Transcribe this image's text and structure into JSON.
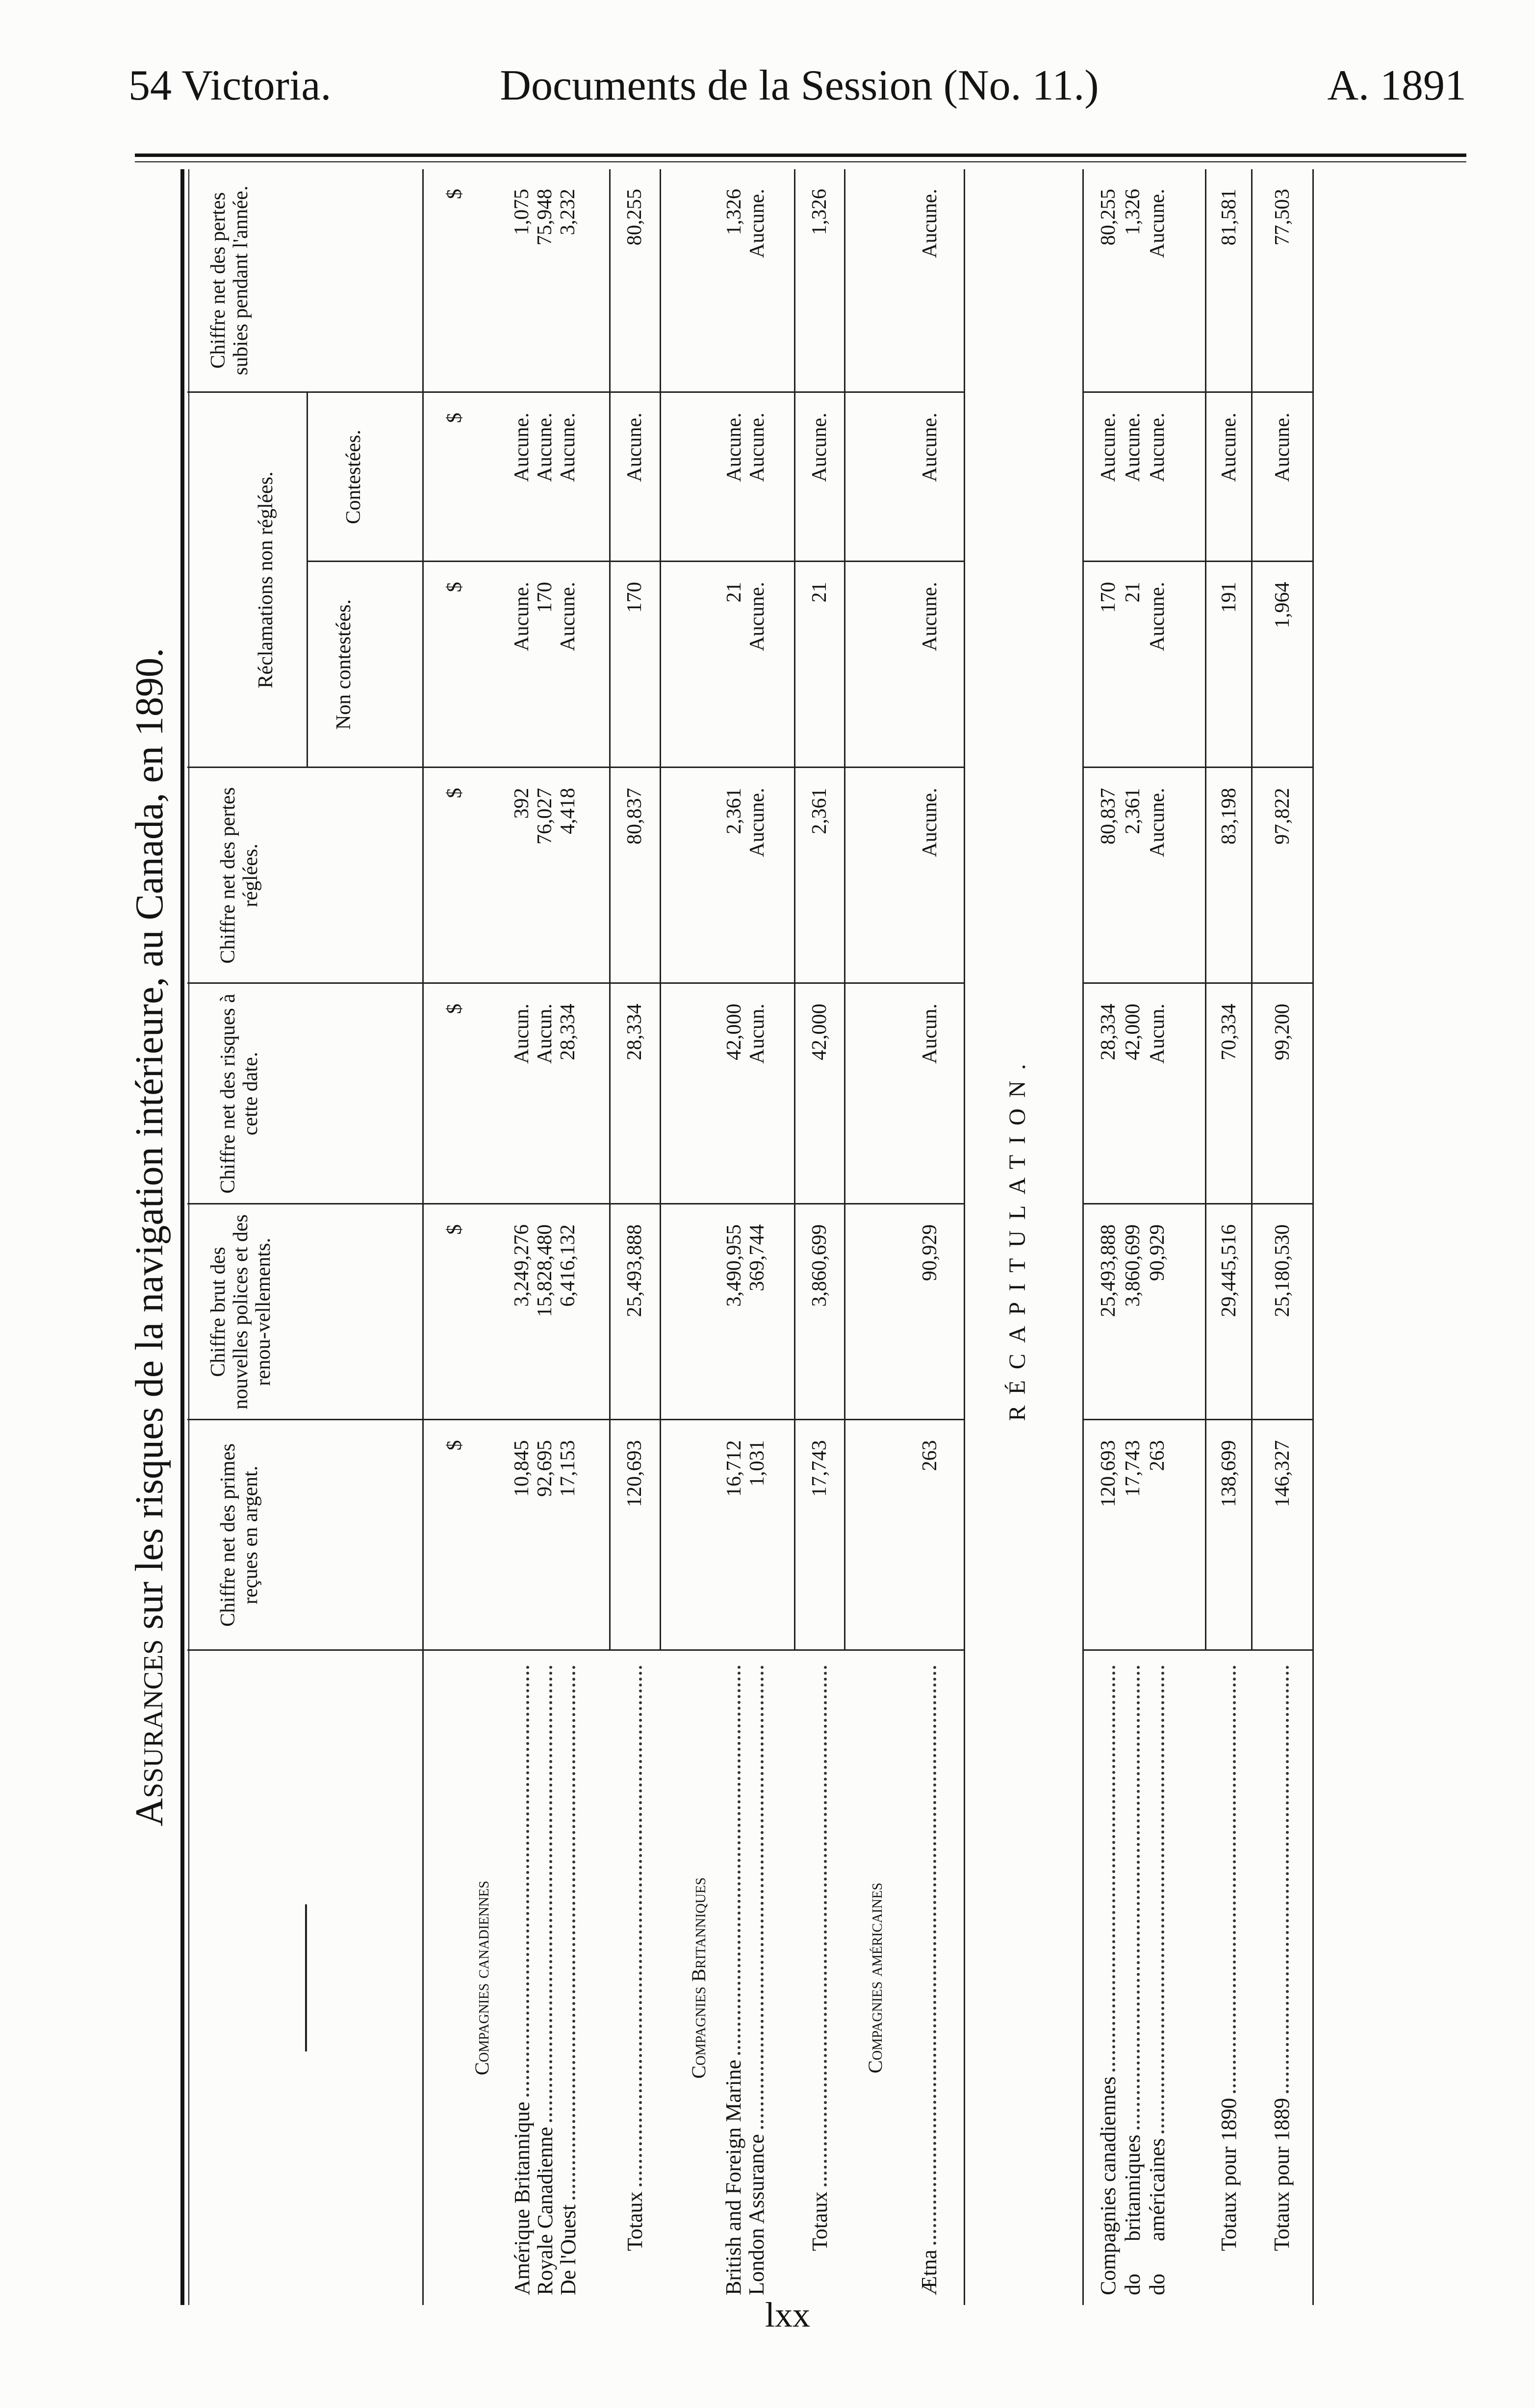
{
  "page_header": {
    "left": "54 Victoria.",
    "center": "Documents de la Session (No. 11.)",
    "right": "A. 1891"
  },
  "title": {
    "lead": "Assurances",
    "rest": " sur les risques de la navigation intérieure, au Canada, en 1890."
  },
  "columns": {
    "c1": "Chiffre net des primes reçues en argent.",
    "c2": "Chiffre brut des nouvelles polices et des renou-vellements.",
    "c3": "Chiffre net des risques à cette date.",
    "c4": "Chiffre net des pertes réglées.",
    "c5": "Réclamations non réglées.",
    "c5a": "Non contestées.",
    "c5b": "Contestées.",
    "c6": "Chiffre net des pertes subies pendant l'année."
  },
  "currency_symbol": "$",
  "sections": [
    {
      "heading": "Compagnies canadiennes",
      "show_currency": true,
      "rows": [
        {
          "label": "Amérique Britannique",
          "values": [
            "10,845",
            "3,249,276",
            "Aucun.",
            "392",
            "Aucune.",
            "Aucune.",
            "1,075"
          ]
        },
        {
          "label": "Royale Canadienne",
          "values": [
            "92,695",
            "15,828,480",
            "Aucun.",
            "76,027",
            "170",
            "Aucune.",
            "75,948"
          ]
        },
        {
          "label": "De l'Ouest",
          "values": [
            "17,153",
            "6,416,132",
            "28,334",
            "4,418",
            "Aucune.",
            "Aucune.",
            "3,232"
          ]
        }
      ],
      "total": {
        "label": "Totaux",
        "values": [
          "120,693",
          "25,493,888",
          "28,334",
          "80,837",
          "170",
          "Aucune.",
          "80,255"
        ]
      }
    },
    {
      "heading": "Compagnies Britanniques",
      "show_currency": false,
      "rows": [
        {
          "label": "British and Foreign Marine",
          "values": [
            "16,712",
            "3,490,955",
            "42,000",
            "2,361",
            "21",
            "Aucune.",
            "1,326"
          ]
        },
        {
          "label": "London Assurance",
          "values": [
            "1,031",
            "369,744",
            "Aucun.",
            "Aucune.",
            "Aucune.",
            "Aucune.",
            "Aucune."
          ]
        }
      ],
      "total": {
        "label": "Totaux",
        "values": [
          "17,743",
          "3,860,699",
          "42,000",
          "2,361",
          "21",
          "Aucune.",
          "1,326"
        ]
      }
    },
    {
      "heading": "Compagnies américaines",
      "show_currency": false,
      "rows": [
        {
          "label": "Ætna",
          "values": [
            "263",
            "90,929",
            "Aucun.",
            "Aucune.",
            "Aucune.",
            "Aucune.",
            "Aucune."
          ]
        }
      ]
    }
  ],
  "recap": {
    "heading": "RÉCAPITULATION.",
    "rows": [
      {
        "prefix": "",
        "label": "Compagnies canadiennes",
        "values": [
          "120,693",
          "25,493,888",
          "28,334",
          "80,837",
          "170",
          "Aucune.",
          "80,255"
        ]
      },
      {
        "prefix": "do",
        "label": "britanniques",
        "values": [
          "17,743",
          "3,860,699",
          "42,000",
          "2,361",
          "21",
          "Aucune.",
          "1,326"
        ]
      },
      {
        "prefix": "do",
        "label": "américaines",
        "values": [
          "263",
          "90,929",
          "Aucun.",
          "Aucune.",
          "Aucune.",
          "Aucune.",
          "Aucune."
        ]
      }
    ],
    "totals": [
      {
        "label": "Totaux pour 1890",
        "values": [
          "138,699",
          "29,445,516",
          "70,334",
          "83,198",
          "191",
          "Aucune.",
          "81,581"
        ]
      },
      {
        "label": "Totaux pour 1889",
        "values": [
          "146,327",
          "25,180,530",
          "99,200",
          "97,822",
          "1,964",
          "Aucune.",
          "77,503"
        ]
      }
    ]
  },
  "footer": {
    "page_number": "lxx"
  }
}
